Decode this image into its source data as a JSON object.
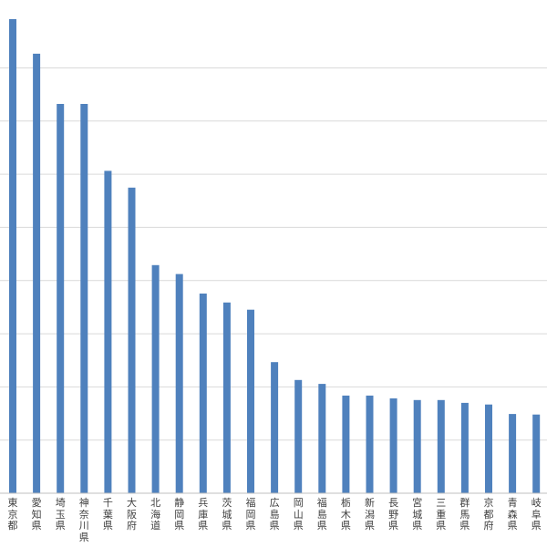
{
  "chart_data": {
    "type": "bar",
    "categories": [
      "東京都",
      "愛知県",
      "埼玉県",
      "神奈川県",
      "千葉県",
      "大阪府",
      "北海道",
      "静岡県",
      "兵庫県",
      "茨城県",
      "福岡県",
      "広島県",
      "岡山県",
      "福島県",
      "栃木県",
      "新潟県",
      "長野県",
      "宮城県",
      "三重県",
      "群馬県",
      "京都府",
      "青森県",
      "岐阜県"
    ],
    "series": [
      {
        "values": [
          8.5,
          7.88,
          6.98,
          6.98,
          5.78,
          5.48,
          4.09,
          3.93,
          3.58,
          3.42,
          3.29,
          2.35,
          2.03,
          1.96,
          1.75,
          1.75,
          1.7,
          1.67,
          1.67,
          1.62,
          1.59,
          1.42,
          1.41
        ]
      }
    ],
    "color": "#4f81bd",
    "ylim": [
      0,
      8.5
    ],
    "grid": true,
    "gridlines": 9,
    "legend": "none"
  }
}
